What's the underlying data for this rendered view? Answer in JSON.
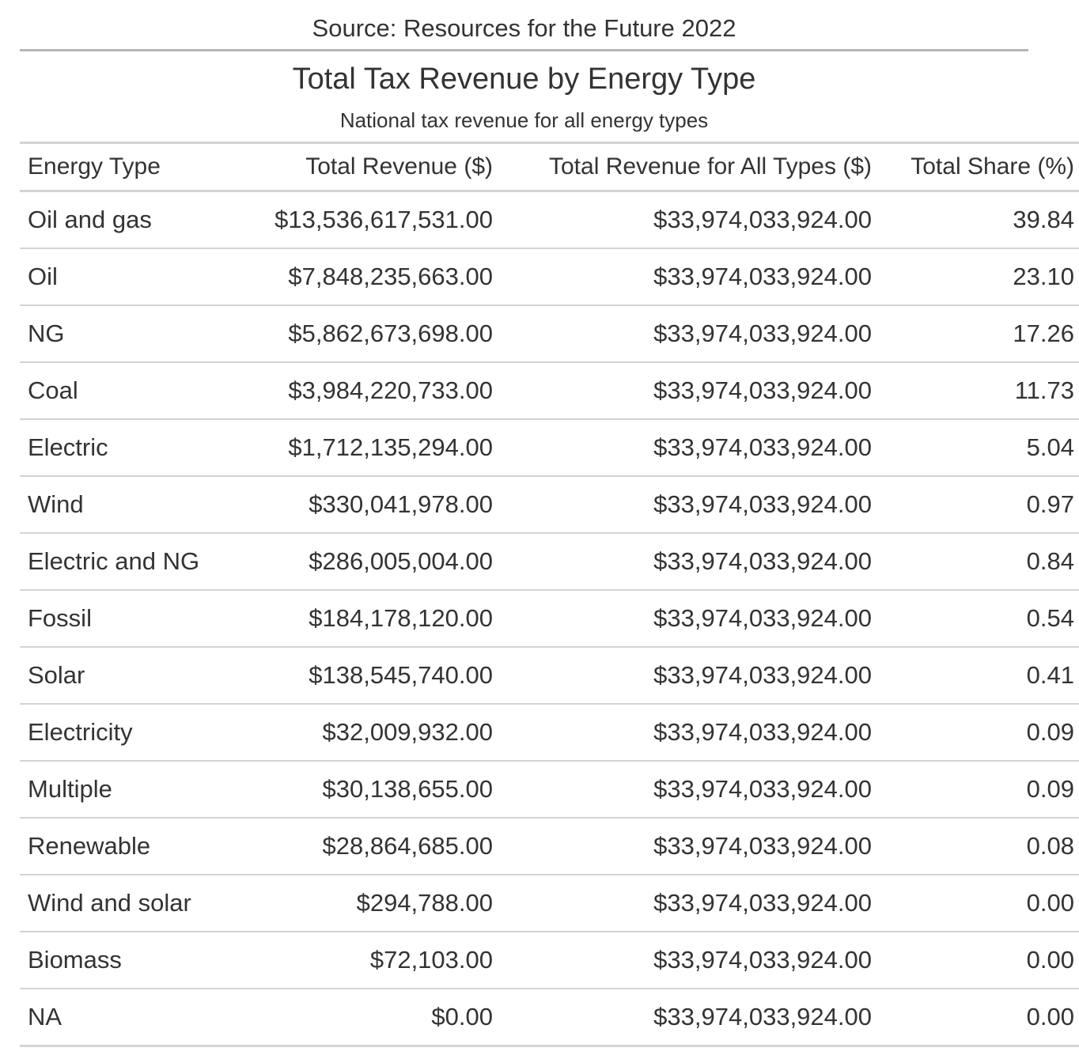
{
  "source_note": "Source: Resources for the Future 2022",
  "chart_data": {
    "type": "table",
    "title": "Total Tax Revenue by Energy Type",
    "subtitle": "National tax revenue for all energy types",
    "columns": [
      "Energy Type",
      "Total Revenue ($)",
      "Total Revenue for All Types ($)",
      "Total Share (%)"
    ],
    "rows": [
      [
        "Oil and gas",
        "$13,536,617,531.00",
        "$33,974,033,924.00",
        "39.84"
      ],
      [
        "Oil",
        "$7,848,235,663.00",
        "$33,974,033,924.00",
        "23.10"
      ],
      [
        "NG",
        "$5,862,673,698.00",
        "$33,974,033,924.00",
        "17.26"
      ],
      [
        "Coal",
        "$3,984,220,733.00",
        "$33,974,033,924.00",
        "11.73"
      ],
      [
        "Electric",
        "$1,712,135,294.00",
        "$33,974,033,924.00",
        "5.04"
      ],
      [
        "Wind",
        "$330,041,978.00",
        "$33,974,033,924.00",
        "0.97"
      ],
      [
        "Electric and NG",
        "$286,005,004.00",
        "$33,974,033,924.00",
        "0.84"
      ],
      [
        "Fossil",
        "$184,178,120.00",
        "$33,974,033,924.00",
        "0.54"
      ],
      [
        "Solar",
        "$138,545,740.00",
        "$33,974,033,924.00",
        "0.41"
      ],
      [
        "Electricity",
        "$32,009,932.00",
        "$33,974,033,924.00",
        "0.09"
      ],
      [
        "Multiple",
        "$30,138,655.00",
        "$33,974,033,924.00",
        "0.09"
      ],
      [
        "Renewable",
        "$28,864,685.00",
        "$33,974,033,924.00",
        "0.08"
      ],
      [
        "Wind and solar",
        "$294,788.00",
        "$33,974,033,924.00",
        "0.00"
      ],
      [
        "Biomass",
        "$72,103.00",
        "$33,974,033,924.00",
        "0.00"
      ],
      [
        "NA",
        "$0.00",
        "$33,974,033,924.00",
        "0.00"
      ]
    ],
    "colors": {
      "text": "#333333",
      "rule": "#d3d3d3",
      "top_rule": "#b5b5b5"
    }
  }
}
